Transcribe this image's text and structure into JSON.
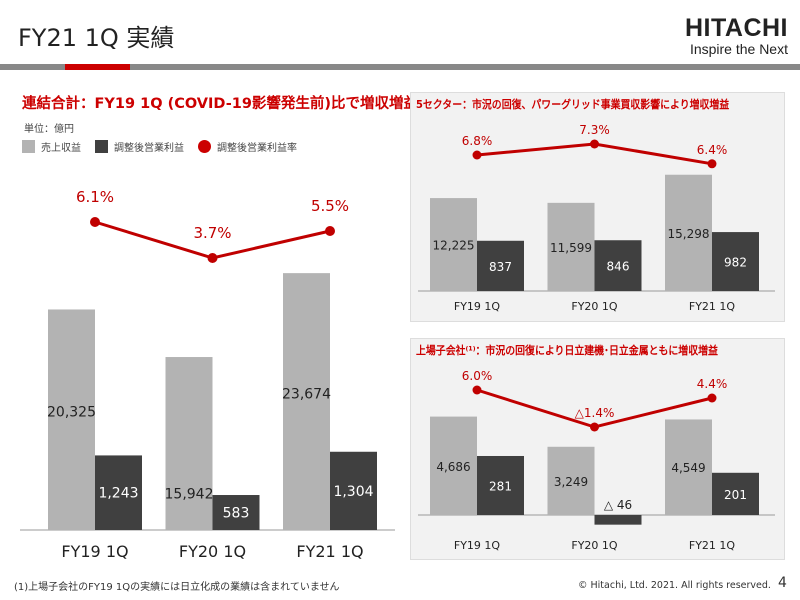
{
  "header": {
    "title": "FY21 1Q 実績",
    "logo_brand": "HITACHI",
    "logo_tagline": "Inspire the Next"
  },
  "colors": {
    "revenue": "#b3b3b3",
    "profit": "#404040",
    "rate": "#c00000",
    "accent": "#cc0000"
  },
  "main": {
    "heading": "連結合計：FY19 1Q (COVID-19影響発生前)比で増収増益",
    "unit": "単位：億円",
    "legend": [
      {
        "label": "売上収益",
        "icon": "gray-square"
      },
      {
        "label": "調整後営業利益",
        "icon": "dark-square"
      },
      {
        "label": "調整後営業利益率",
        "icon": "red-dot"
      }
    ]
  },
  "chart_data": [
    {
      "type": "bar+line",
      "categories": [
        "FY19 1Q",
        "FY20 1Q",
        "FY21 1Q"
      ],
      "series": [
        {
          "name": "売上収益",
          "values": [
            20325,
            15942,
            23674
          ],
          "labels": [
            "20,325",
            "15,942",
            "23,674"
          ]
        },
        {
          "name": "調整後営業利益",
          "values": [
            1243,
            583,
            1304
          ],
          "labels": [
            "1,243",
            "583",
            "1,304"
          ]
        },
        {
          "name": "調整後営業利益率",
          "values": [
            6.1,
            3.7,
            5.5
          ],
          "labels": [
            "6.1%",
            "3.7%",
            "5.5%"
          ]
        }
      ]
    },
    {
      "type": "bar+line",
      "title": "5セクター：市況の回復、パワーグリッド事業買収影響により増収増益",
      "categories": [
        "FY19 1Q",
        "FY20 1Q",
        "FY21 1Q"
      ],
      "series": [
        {
          "name": "売上収益",
          "values": [
            12225,
            11599,
            15298
          ],
          "labels": [
            "12,225",
            "11,599",
            "15,298"
          ]
        },
        {
          "name": "調整後営業利益",
          "values": [
            837,
            846,
            982
          ],
          "labels": [
            "837",
            "846",
            "982"
          ]
        },
        {
          "name": "調整後営業利益率",
          "values": [
            6.8,
            7.3,
            6.4
          ],
          "labels": [
            "6.8%",
            "7.3%",
            "6.4%"
          ]
        }
      ]
    },
    {
      "type": "bar+line",
      "title": "上場子会社⁽¹⁾：市況の回復により日立建機･日立金属ともに増収増益",
      "categories": [
        "FY19 1Q",
        "FY20 1Q",
        "FY21 1Q"
      ],
      "series": [
        {
          "name": "売上収益",
          "values": [
            4686,
            3249,
            4549
          ],
          "labels": [
            "4,686",
            "3,249",
            "4,549"
          ]
        },
        {
          "name": "調整後営業利益",
          "values": [
            281,
            -46,
            201
          ],
          "labels": [
            "281",
            "△ 46",
            "201"
          ]
        },
        {
          "name": "調整後営業利益率",
          "values": [
            6.0,
            -1.4,
            4.4
          ],
          "labels": [
            "6.0%",
            "△1.4%",
            "4.4%"
          ]
        }
      ]
    }
  ],
  "footer": {
    "note": "(1)上場子会社のFY19 1Qの実績には日立化成の業績は含まれていません",
    "copyright": "© Hitachi, Ltd. 2021. All rights reserved.",
    "page": "4"
  }
}
